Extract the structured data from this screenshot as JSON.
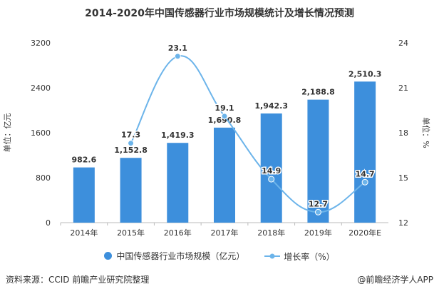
{
  "title": "2014-2020年中国传感器行业市场规模统计及增长情况预测",
  "source": "资料来源：CCID 前瞻产业研究院整理",
  "brand": "@前瞻经济学人APP",
  "colors": {
    "bar": "#3d8fdc",
    "line": "#6cb4ea",
    "text": "#333333"
  },
  "chart_data": {
    "type": "bar+line",
    "categories": [
      "2014年",
      "2015年",
      "2016年",
      "2017年",
      "2018年",
      "2019年",
      "2020年E"
    ],
    "series": [
      {
        "name": "中国传感器行业市场规模（亿元）",
        "type": "bar",
        "axis": "left",
        "values": [
          982.6,
          1152.8,
          1419.3,
          1690.8,
          1942.3,
          2188.8,
          2510.3
        ],
        "labels": [
          "982.6",
          "1,152.8",
          "1,419.3",
          "1,690.8",
          "1,942.3",
          "2,188.8",
          "2,510.3"
        ]
      },
      {
        "name": "增长率（%）",
        "type": "line",
        "smooth": true,
        "axis": "right",
        "values": [
          null,
          17.3,
          23.1,
          19.1,
          14.9,
          12.7,
          14.7
        ],
        "labels": [
          "",
          "17.3",
          "23.1",
          "19.1",
          "14.9",
          "12.7",
          "14.7"
        ]
      }
    ],
    "ylabel": "单位：亿元",
    "y2label": "单位：%",
    "ylim": [
      0,
      3200
    ],
    "yticks": [
      "0",
      "800",
      "1600",
      "2400",
      "3200"
    ],
    "y2lim": [
      12,
      24
    ],
    "y2ticks": [
      "12",
      "15",
      "18",
      "21",
      "24"
    ],
    "legend": "bottom",
    "grid": false
  }
}
